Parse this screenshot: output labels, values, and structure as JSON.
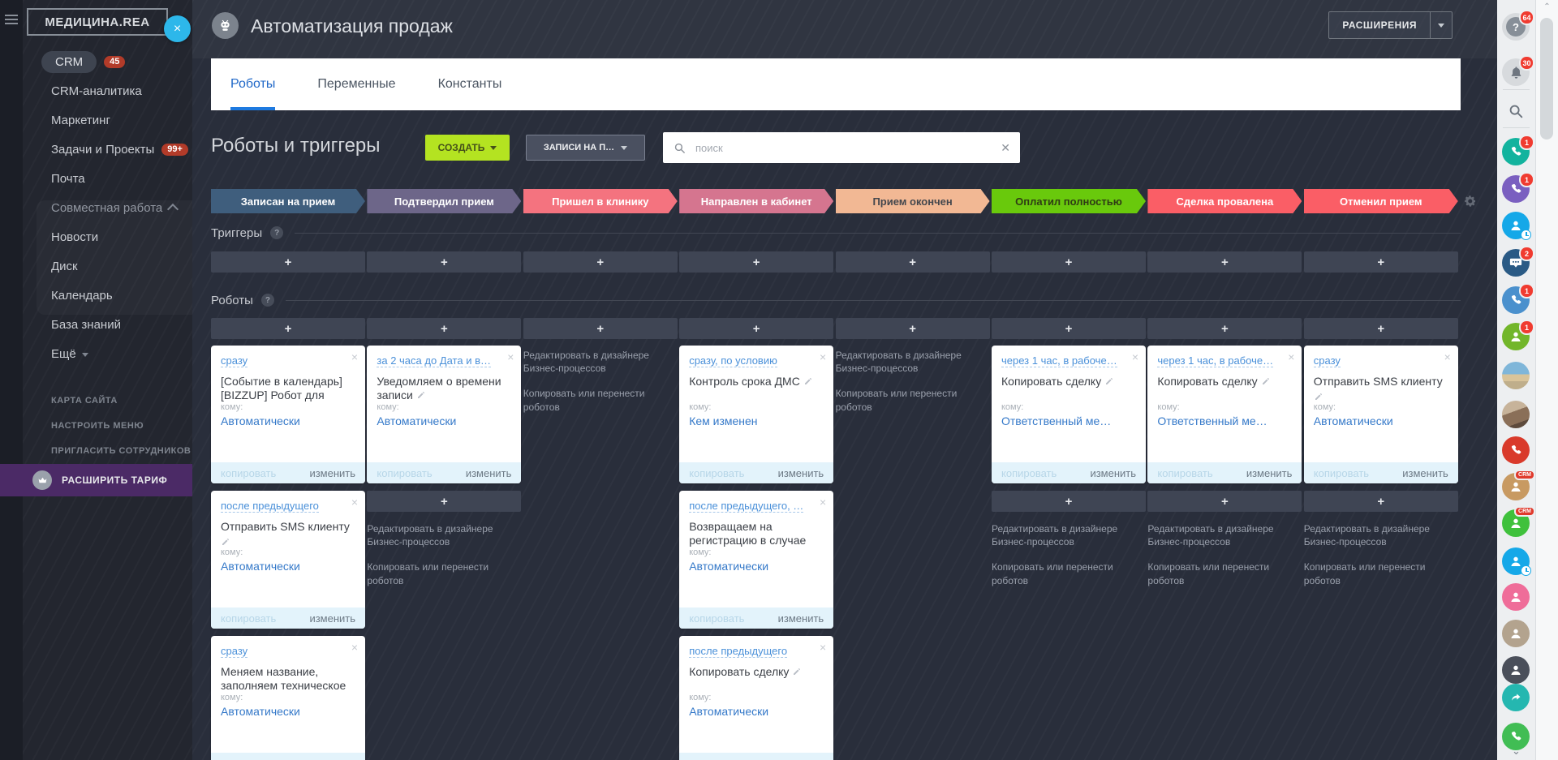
{
  "sidebar": {
    "logo": "МЕДИЦИНА.REA",
    "close_label": "×",
    "menu": [
      {
        "label": "CRM",
        "badge": "45",
        "style": "pill"
      },
      {
        "label": "CRM-аналитика",
        "style": "plain"
      },
      {
        "label": "Маркетинг",
        "style": "plain"
      },
      {
        "label": "Задачи и Проекты",
        "badge": "99+",
        "style": "plain"
      },
      {
        "label": "Почта",
        "style": "plain"
      },
      {
        "label": "Совместная работа",
        "style": "group"
      },
      {
        "label": "Новости",
        "style": "plain"
      },
      {
        "label": "Диск",
        "style": "plain"
      },
      {
        "label": "Календарь",
        "style": "plain"
      },
      {
        "label": "База знаний",
        "style": "plain"
      },
      {
        "label": "Ещё",
        "style": "more"
      }
    ],
    "footer_links": [
      {
        "label": "КАРТА САЙТА"
      },
      {
        "label": "НАСТРОИТЬ МЕНЮ"
      },
      {
        "label": "ПРИГЛАСИТЬ СОТРУДНИКОВ"
      }
    ],
    "upgrade_label": "РАСШИРИТЬ ТАРИФ"
  },
  "header": {
    "title": "Автоматизация продаж",
    "extensions_label": "РАСШИРЕНИЯ"
  },
  "tabs": [
    {
      "label": "Роботы",
      "active": true
    },
    {
      "label": "Переменные",
      "active": false
    },
    {
      "label": "Константы",
      "active": false
    }
  ],
  "toolbar": {
    "title": "Роботы и триггеры",
    "create_label": "СОЗДАТЬ",
    "filter_label": "ЗАПИСИ НА П…",
    "search_placeholder": "поиск",
    "search_value": "",
    "clear_label": "✕"
  },
  "pipeline": {
    "sections": {
      "triggers": "Триггеры",
      "robots": "Роботы"
    },
    "plus_label": "+",
    "to_label": "кому:",
    "card_actions": {
      "copy": "копировать",
      "edit": "изменить"
    },
    "close_label": "×",
    "hint_lines": [
      "Редактировать в дизайнере Бизнес-процессов",
      "Копировать или перенести роботов"
    ],
    "stages": [
      {
        "label": "Записан на прием",
        "color": "#3f5e7d",
        "text_color": "#ffffff"
      },
      {
        "label": "Подтвердил прием",
        "color": "#6d6689",
        "text_color": "#ffffff"
      },
      {
        "label": "Пришел в клинику",
        "color": "#f4737f",
        "text_color": "#ffffff"
      },
      {
        "label": "Направлен в кабинет",
        "color": "#d5758f",
        "text_color": "#ffffff"
      },
      {
        "label": "Прием окончен",
        "color": "#f2b894",
        "text_color": "#44474d"
      },
      {
        "label": "Оплатил полностью",
        "color": "#69c90c",
        "text_color": "#2f3b15"
      },
      {
        "label": "Сделка провалена",
        "color": "#fa5e66",
        "text_color": "#ffffff"
      },
      {
        "label": "Отменил прием",
        "color": "#fa5e66",
        "text_color": "#ffffff"
      }
    ],
    "columns": [
      {
        "stage": "Записан на прием",
        "items": [
          {
            "type": "card",
            "when": "сразу",
            "title": "[Событие в календарь] [BIZZUP] Робот для",
            "pencil": "none",
            "to": "Автоматически"
          },
          {
            "type": "card",
            "when": "после предыдущего",
            "title": "Отправить SMS клиенту",
            "pencil": "line",
            "to": "Автоматически"
          },
          {
            "type": "card",
            "when": "сразу",
            "title": "Меняем название, заполняем техническое",
            "pencil": "none",
            "to": "Автоматически"
          }
        ]
      },
      {
        "stage": "Подтвердил прием",
        "items": [
          {
            "type": "card",
            "when": "за 2 часа до Дата и в…",
            "title": "Уведомляем о времени записи",
            "pencil": "inline",
            "to": "Автоматически"
          },
          {
            "type": "plus"
          },
          {
            "type": "hint"
          }
        ]
      },
      {
        "stage": "Пришел в клинику",
        "items": [
          {
            "type": "hint"
          }
        ]
      },
      {
        "stage": "Направлен в кабинет",
        "items": [
          {
            "type": "card",
            "when": "сразу, по условию",
            "title": "Контроль срока ДМС",
            "pencil": "inline",
            "to": "Кем изменен"
          },
          {
            "type": "card",
            "when": "после предыдущего, …",
            "title": "Возвращаем на регистрацию в случае",
            "pencil": "none",
            "to": "Автоматически"
          },
          {
            "type": "card",
            "when": "после предыдущего",
            "title": "Копировать сделку",
            "pencil": "inline",
            "to": "Автоматически"
          }
        ]
      },
      {
        "stage": "Прием окончен",
        "items": [
          {
            "type": "hint"
          }
        ]
      },
      {
        "stage": "Оплатил полностью",
        "items": [
          {
            "type": "card",
            "when": "через 1 час, в рабоче…",
            "title": "Копировать сделку",
            "pencil": "inline",
            "to": "Ответственный ме…"
          },
          {
            "type": "plus"
          },
          {
            "type": "hint"
          }
        ]
      },
      {
        "stage": "Сделка провалена",
        "items": [
          {
            "type": "card",
            "when": "через 1 час, в рабоче…",
            "title": "Копировать сделку",
            "pencil": "inline",
            "to": "Ответственный ме…"
          },
          {
            "type": "plus"
          },
          {
            "type": "hint"
          }
        ]
      },
      {
        "stage": "Отменил прием",
        "items": [
          {
            "type": "card",
            "when": "сразу",
            "title": "Отправить SMS клиенту",
            "pencil": "line",
            "to": "Автоматически"
          },
          {
            "type": "plus"
          },
          {
            "type": "hint"
          }
        ]
      }
    ]
  },
  "right_bar": {
    "icons": [
      {
        "name": "help-icon",
        "kind": "help",
        "badge": "64"
      },
      {
        "name": "notifications-bell-icon",
        "kind": "bell",
        "badge": "30"
      },
      {
        "name": "search-icon",
        "kind": "search",
        "badge": ""
      },
      {
        "name": "telephony-phone-icon",
        "kind": "phone",
        "color": "#12b39e",
        "badge": "1"
      },
      {
        "name": "viber-phone-icon",
        "kind": "phone",
        "color": "#7a5fc0",
        "badge": "1"
      },
      {
        "name": "booking-client-clock-icon",
        "kind": "person-clock",
        "color": "#15a8e8",
        "badge": ""
      },
      {
        "name": "group-chat-icon",
        "kind": "chat",
        "color": "#2a5a85",
        "badge": "2"
      },
      {
        "name": "calls-phone-icon",
        "kind": "phone",
        "color": "#4a90cd",
        "badge": "1"
      },
      {
        "name": "client-person-icon",
        "kind": "person",
        "color": "#72b62a",
        "badge": "1"
      },
      {
        "name": "user-avatar-beach",
        "kind": "avatar-beach",
        "badge": ""
      },
      {
        "name": "user-avatar-woman",
        "kind": "avatar-woman",
        "badge": ""
      },
      {
        "name": "call-phone-icon",
        "kind": "phone",
        "color": "#d93a2b",
        "badge": ""
      },
      {
        "name": "crm-app-icon",
        "kind": "app-crm",
        "color": "#c89a62",
        "badge": ""
      },
      {
        "name": "crm-app-icon",
        "kind": "app-crm",
        "color": "#3fc13c",
        "badge": ""
      },
      {
        "name": "booking-client-clock-icon",
        "kind": "person-clock",
        "color": "#15a8e8",
        "badge": ""
      },
      {
        "name": "client-person-icon",
        "kind": "person",
        "color": "#ef6d99",
        "badge": ""
      },
      {
        "name": "client-person-icon",
        "kind": "person",
        "color": "#b3a38e",
        "badge": ""
      },
      {
        "name": "client-person-icon",
        "kind": "person",
        "color": "#4a4f5a",
        "badge": ""
      },
      {
        "name": "share-icon",
        "kind": "share",
        "color": "#25b7b0",
        "badge": ""
      },
      {
        "name": "phone-icon",
        "kind": "phone",
        "color": "#41bd54",
        "badge": ""
      }
    ],
    "more_chevron": "⌄"
  }
}
